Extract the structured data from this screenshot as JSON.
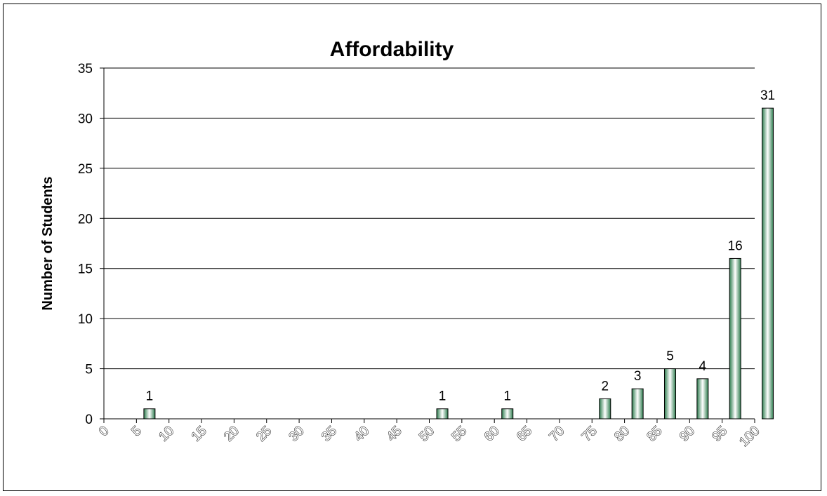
{
  "chart_data": {
    "type": "bar",
    "title": "Affordability",
    "xlabel": "",
    "ylabel": "Number of Students",
    "ylim": [
      0,
      35
    ],
    "yticks": [
      0,
      5,
      10,
      15,
      20,
      25,
      30,
      35
    ],
    "x_tick_labels": [
      "0",
      "5",
      "10",
      "15",
      "20",
      "25",
      "30",
      "35",
      "40",
      "45",
      "50",
      "55",
      "60",
      "65",
      "70",
      "75",
      "80",
      "85",
      "90",
      "95",
      "100"
    ],
    "categories": [
      "5-10",
      "10-15",
      "15-20",
      "20-25",
      "25-30",
      "30-35",
      "35-40",
      "40-45",
      "45-50",
      "50-55",
      "55-60",
      "60-65",
      "65-70",
      "70-75",
      "75-80",
      "80-85",
      "85-90",
      "90-95",
      "95-100",
      "100"
    ],
    "values": [
      1,
      0,
      0,
      0,
      0,
      0,
      0,
      0,
      0,
      1,
      0,
      1,
      0,
      0,
      2,
      3,
      5,
      4,
      16,
      31
    ],
    "grid": true,
    "legend": "none",
    "colors": {
      "bar_dark": "#2e7d4f",
      "bar_light": "#ffffff",
      "bar_edge": "#000000",
      "grid": "#000000"
    }
  }
}
